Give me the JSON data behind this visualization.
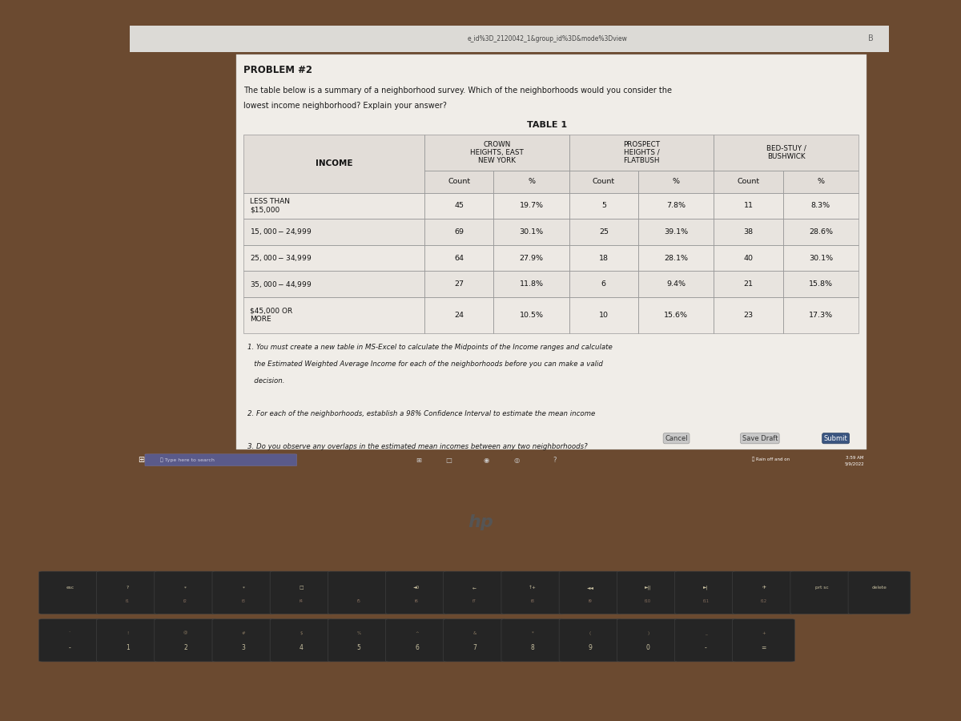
{
  "browser_url": "e_id%3D_2120042_1&group_id%3D&mode%3Dview",
  "problem_title": "PROBLEM #2",
  "problem_text_line1": "The table below is a summary of a neighborhood survey. Which of the neighborhoods would you consider the",
  "problem_text_line2": "lowest income neighborhood? Explain your answer?",
  "table_title": "TABLE 1",
  "col_headers_row0": [
    "CROWN\nHEIGHTS, EAST\nNEW YORK",
    "PROSPECT\nHEIGHTS /\nFLATBUSH",
    "BED-STUY /\nBUSHWICK"
  ],
  "col_headers_row1": [
    "Count",
    "%",
    "Count",
    "%",
    "Count",
    "%"
  ],
  "income_labels": [
    "LESS THAN\n$15,000",
    "$15,000 - $24,999",
    "$25,000 - $34,999",
    "$35,000 - $44,999",
    "$45,000 OR\nMORE"
  ],
  "data_rows": [
    [
      "45",
      "19.7%",
      "5",
      "7.8%",
      "11",
      "8.3%"
    ],
    [
      "69",
      "30.1%",
      "25",
      "39.1%",
      "38",
      "28.6%"
    ],
    [
      "64",
      "27.9%",
      "18",
      "28.1%",
      "40",
      "30.1%"
    ],
    [
      "27",
      "11.8%",
      "6",
      "9.4%",
      "21",
      "15.8%"
    ],
    [
      "24",
      "10.5%",
      "10",
      "15.6%",
      "23",
      "17.3%"
    ]
  ],
  "instruction1": "1. You must create a new table in MS-Excel to calculate the Midpoints of the Income ranges and calculate",
  "instruction1b": "   the Estimated Weighted Average Income for each of the neighborhoods before you can make a valid",
  "instruction1c": "   decision.",
  "instruction2": "2. For each of the neighborhoods, establish a 98% Confidence Interval to estimate the mean income",
  "instruction3": "3. Do you observe any overlaps in the estimated mean incomes between any two neighborhoods?",
  "screen_bg": "#cac7c0",
  "content_bg": "#f0ede8",
  "header_bg": "#e2ddd8",
  "row_bg1": "#ede9e4",
  "row_bg2": "#e8e4df",
  "border_color": "#aaaaaa",
  "text_dark": "#1a1a1a",
  "taskbar_color": "#4a4a7a",
  "laptop_dark": "#111111",
  "desk_color": "#6b4a30",
  "btn_submit_bg": "#3a5580",
  "btn_gray_bg": "#c8c8c8"
}
